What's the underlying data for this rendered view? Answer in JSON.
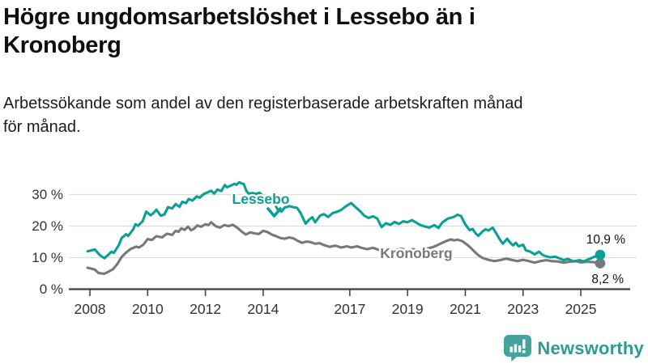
{
  "header": {
    "title": "Högre ungdomsarbetslöshet i Lessebo än i\nKronoberg",
    "subtitle": "Arbetssökande som andel av den registerbaserade arbetskraften månad\nför månad."
  },
  "chart_data": {
    "type": "line",
    "unit": "%",
    "x_range": [
      2007.9,
      2026.1
    ],
    "ylim": [
      0,
      36
    ],
    "grid": "horizontal",
    "legend_position": "inline-labels",
    "yticks": [
      {
        "value": 30,
        "label": "30 %"
      },
      {
        "value": 20,
        "label": "20 %"
      },
      {
        "value": 10,
        "label": "10 %"
      },
      {
        "value": 0,
        "label": "0 %"
      }
    ],
    "xticks": [
      {
        "value": 2008,
        "label": "2008"
      },
      {
        "value": 2010,
        "label": "2010"
      },
      {
        "value": 2012,
        "label": "2012"
      },
      {
        "value": 2014,
        "label": "2014"
      },
      {
        "value": 2017,
        "label": "2017"
      },
      {
        "value": 2019,
        "label": "2019"
      },
      {
        "value": 2021,
        "label": "2021"
      },
      {
        "value": 2023,
        "label": "2023"
      },
      {
        "value": 2025,
        "label": "2025"
      }
    ],
    "series": [
      {
        "name": "Lessebo",
        "color": "#0aa096",
        "end_label": "10,9 %",
        "end_value": 10.9,
        "points": [
          [
            2007.92,
            12.0
          ],
          [
            2008.17,
            12.6
          ],
          [
            2008.33,
            10.9
          ],
          [
            2008.5,
            9.8
          ],
          [
            2008.67,
            11.2
          ],
          [
            2008.75,
            11.9
          ],
          [
            2008.83,
            11.5
          ],
          [
            2009.0,
            14.0
          ],
          [
            2009.1,
            16.2
          ],
          [
            2009.25,
            17.4
          ],
          [
            2009.33,
            16.9
          ],
          [
            2009.5,
            19.0
          ],
          [
            2009.58,
            20.6
          ],
          [
            2009.67,
            20.1
          ],
          [
            2009.83,
            21.6
          ],
          [
            2009.95,
            24.6
          ],
          [
            2010.1,
            23.4
          ],
          [
            2010.2,
            24.1
          ],
          [
            2010.3,
            25.2
          ],
          [
            2010.45,
            23.3
          ],
          [
            2010.58,
            23.7
          ],
          [
            2010.7,
            26.0
          ],
          [
            2010.85,
            25.6
          ],
          [
            2010.97,
            27.0
          ],
          [
            2011.1,
            26.1
          ],
          [
            2011.2,
            27.7
          ],
          [
            2011.33,
            27.3
          ],
          [
            2011.42,
            28.6
          ],
          [
            2011.55,
            28.1
          ],
          [
            2011.7,
            29.4
          ],
          [
            2011.8,
            29.0
          ],
          [
            2011.92,
            30.0
          ],
          [
            2012.0,
            30.4
          ],
          [
            2012.1,
            30.8
          ],
          [
            2012.2,
            31.2
          ],
          [
            2012.3,
            30.3
          ],
          [
            2012.42,
            31.6
          ],
          [
            2012.55,
            31.1
          ],
          [
            2012.67,
            33.0
          ],
          [
            2012.75,
            32.3
          ],
          [
            2012.87,
            32.8
          ],
          [
            2013.0,
            33.4
          ],
          [
            2013.08,
            33.1
          ],
          [
            2013.17,
            33.9
          ],
          [
            2013.25,
            33.5
          ],
          [
            2013.33,
            33.3
          ],
          [
            2013.42,
            31.1
          ],
          [
            2013.5,
            30.3
          ],
          [
            2013.63,
            30.5
          ],
          [
            2013.75,
            30.2
          ],
          [
            2013.87,
            30.6
          ],
          [
            2014.0,
            29.4
          ],
          [
            2014.13,
            28.9
          ],
          [
            2014.25,
            28.2
          ],
          [
            2014.4,
            27.0
          ],
          [
            2014.5,
            25.3
          ],
          [
            2014.63,
            24.6
          ],
          [
            2014.75,
            25.9
          ],
          [
            2014.9,
            26.3
          ],
          [
            2015.05,
            26.0
          ],
          [
            2015.17,
            25.8
          ],
          [
            2015.3,
            24.1
          ],
          [
            2015.47,
            20.8
          ],
          [
            2015.6,
            22.1
          ],
          [
            2015.7,
            22.8
          ],
          [
            2015.8,
            21.2
          ],
          [
            2015.97,
            23.3
          ],
          [
            2016.1,
            23.8
          ],
          [
            2016.25,
            22.9
          ],
          [
            2016.4,
            24.1
          ],
          [
            2016.55,
            24.5
          ],
          [
            2016.7,
            25.1
          ],
          [
            2016.85,
            26.2
          ],
          [
            2017.05,
            27.3
          ],
          [
            2017.2,
            26.0
          ],
          [
            2017.35,
            24.8
          ],
          [
            2017.5,
            23.3
          ],
          [
            2017.65,
            22.6
          ],
          [
            2017.8,
            23.1
          ],
          [
            2017.95,
            22.4
          ],
          [
            2018.1,
            19.7
          ],
          [
            2018.25,
            20.9
          ],
          [
            2018.4,
            20.4
          ],
          [
            2018.55,
            21.3
          ],
          [
            2018.7,
            20.7
          ],
          [
            2018.85,
            21.5
          ],
          [
            2019.0,
            21.2
          ],
          [
            2019.15,
            21.9
          ],
          [
            2019.3,
            21.1
          ],
          [
            2019.45,
            20.3
          ],
          [
            2019.6,
            19.9
          ],
          [
            2019.75,
            19.5
          ],
          [
            2019.93,
            20.3
          ],
          [
            2020.07,
            19.4
          ],
          [
            2020.2,
            21.1
          ],
          [
            2020.4,
            22.4
          ],
          [
            2020.6,
            22.9
          ],
          [
            2020.73,
            23.6
          ],
          [
            2020.85,
            23.2
          ],
          [
            2021.0,
            20.5
          ],
          [
            2021.15,
            18.7
          ],
          [
            2021.25,
            19.1
          ],
          [
            2021.35,
            17.8
          ],
          [
            2021.45,
            16.9
          ],
          [
            2021.6,
            18.3
          ],
          [
            2021.7,
            19.0
          ],
          [
            2021.8,
            18.6
          ],
          [
            2021.95,
            19.5
          ],
          [
            2022.05,
            18.0
          ],
          [
            2022.2,
            15.7
          ],
          [
            2022.3,
            14.4
          ],
          [
            2022.45,
            16.0
          ],
          [
            2022.55,
            14.8
          ],
          [
            2022.65,
            13.9
          ],
          [
            2022.75,
            14.7
          ],
          [
            2022.85,
            13.6
          ],
          [
            2023.0,
            14.1
          ],
          [
            2023.1,
            12.3
          ],
          [
            2023.25,
            11.9
          ],
          [
            2023.4,
            11.0
          ],
          [
            2023.55,
            11.9
          ],
          [
            2023.67,
            10.9
          ],
          [
            2023.8,
            10.4
          ],
          [
            2023.95,
            10.1
          ],
          [
            2024.1,
            10.3
          ],
          [
            2024.2,
            10.0
          ],
          [
            2024.4,
            9.2
          ],
          [
            2024.55,
            9.6
          ],
          [
            2024.75,
            8.8
          ],
          [
            2024.95,
            9.2
          ],
          [
            2025.1,
            8.8
          ],
          [
            2025.3,
            9.6
          ],
          [
            2025.5,
            10.4
          ],
          [
            2025.67,
            10.9
          ]
        ]
      },
      {
        "name": "Kronoberg",
        "color": "#787878",
        "end_label": "8,2 %",
        "end_value": 8.2,
        "points": [
          [
            2007.92,
            6.8
          ],
          [
            2008.17,
            6.2
          ],
          [
            2008.3,
            5.1
          ],
          [
            2008.5,
            4.9
          ],
          [
            2008.65,
            5.6
          ],
          [
            2008.8,
            6.3
          ],
          [
            2008.95,
            8.0
          ],
          [
            2009.1,
            10.2
          ],
          [
            2009.25,
            11.6
          ],
          [
            2009.4,
            12.7
          ],
          [
            2009.5,
            13.1
          ],
          [
            2009.6,
            13.5
          ],
          [
            2009.7,
            13.2
          ],
          [
            2009.85,
            14.1
          ],
          [
            2010.0,
            15.9
          ],
          [
            2010.15,
            15.6
          ],
          [
            2010.3,
            16.8
          ],
          [
            2010.5,
            16.4
          ],
          [
            2010.67,
            17.6
          ],
          [
            2010.85,
            17.2
          ],
          [
            2010.97,
            18.5
          ],
          [
            2011.07,
            18.2
          ],
          [
            2011.17,
            19.3
          ],
          [
            2011.28,
            18.8
          ],
          [
            2011.4,
            19.8
          ],
          [
            2011.5,
            18.7
          ],
          [
            2011.6,
            19.1
          ],
          [
            2011.72,
            20.2
          ],
          [
            2011.85,
            19.8
          ],
          [
            2012.0,
            20.6
          ],
          [
            2012.1,
            20.3
          ],
          [
            2012.2,
            21.2
          ],
          [
            2012.35,
            20.0
          ],
          [
            2012.5,
            19.5
          ],
          [
            2012.65,
            20.3
          ],
          [
            2012.8,
            20.0
          ],
          [
            2012.95,
            20.4
          ],
          [
            2013.1,
            19.5
          ],
          [
            2013.25,
            18.3
          ],
          [
            2013.4,
            17.3
          ],
          [
            2013.55,
            18.0
          ],
          [
            2013.7,
            17.7
          ],
          [
            2013.85,
            17.5
          ],
          [
            2014.0,
            18.5
          ],
          [
            2014.15,
            18.1
          ],
          [
            2014.3,
            17.3
          ],
          [
            2014.45,
            16.8
          ],
          [
            2014.6,
            16.2
          ],
          [
            2014.75,
            16.0
          ],
          [
            2014.9,
            16.4
          ],
          [
            2015.05,
            16.1
          ],
          [
            2015.2,
            15.3
          ],
          [
            2015.35,
            14.7
          ],
          [
            2015.5,
            15.1
          ],
          [
            2015.65,
            14.9
          ],
          [
            2015.8,
            14.4
          ],
          [
            2015.95,
            14.6
          ],
          [
            2016.1,
            14.0
          ],
          [
            2016.3,
            13.4
          ],
          [
            2016.5,
            13.8
          ],
          [
            2016.7,
            13.2
          ],
          [
            2016.9,
            13.6
          ],
          [
            2017.05,
            13.2
          ],
          [
            2017.25,
            13.6
          ],
          [
            2017.45,
            13.0
          ],
          [
            2017.6,
            12.7
          ],
          [
            2017.8,
            13.1
          ],
          [
            2018.0,
            12.5
          ],
          [
            2018.2,
            12.2
          ],
          [
            2018.4,
            12.7
          ],
          [
            2018.6,
            12.4
          ],
          [
            2018.8,
            12.8
          ],
          [
            2019.0,
            12.4
          ],
          [
            2019.2,
            12.7
          ],
          [
            2019.4,
            12.3
          ],
          [
            2019.55,
            12.6
          ],
          [
            2019.74,
            13.0
          ],
          [
            2019.9,
            13.4
          ],
          [
            2020.02,
            13.9
          ],
          [
            2020.2,
            14.7
          ],
          [
            2020.35,
            15.3
          ],
          [
            2020.5,
            15.8
          ],
          [
            2020.6,
            15.5
          ],
          [
            2020.75,
            15.7
          ],
          [
            2020.9,
            15.2
          ],
          [
            2021.05,
            14.2
          ],
          [
            2021.2,
            13.0
          ],
          [
            2021.33,
            11.8
          ],
          [
            2021.45,
            10.8
          ],
          [
            2021.6,
            9.9
          ],
          [
            2021.8,
            9.3
          ],
          [
            2022.0,
            8.9
          ],
          [
            2022.2,
            9.2
          ],
          [
            2022.4,
            9.7
          ],
          [
            2022.6,
            9.3
          ],
          [
            2022.8,
            8.9
          ],
          [
            2023.0,
            9.3
          ],
          [
            2023.2,
            8.9
          ],
          [
            2023.4,
            8.4
          ],
          [
            2023.6,
            8.9
          ],
          [
            2023.8,
            9.2
          ],
          [
            2024.0,
            8.9
          ],
          [
            2024.2,
            8.8
          ],
          [
            2024.4,
            8.4
          ],
          [
            2024.6,
            8.7
          ],
          [
            2024.8,
            8.9
          ],
          [
            2025.0,
            8.5
          ],
          [
            2025.2,
            8.7
          ],
          [
            2025.4,
            8.6
          ],
          [
            2025.55,
            8.4
          ],
          [
            2025.67,
            8.2
          ]
        ]
      }
    ]
  },
  "annotations": {
    "lessebo_pointer": "chevron-down"
  },
  "logo": {
    "brand": "Newsworthy",
    "icon": "bar-chart-speech-bubble",
    "icon_color": "#44a39c",
    "text_color": "#2e9b93"
  }
}
